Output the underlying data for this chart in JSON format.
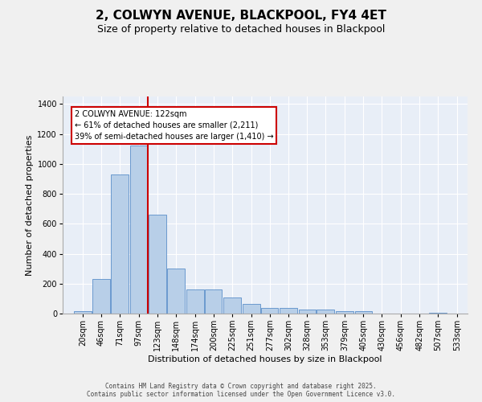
{
  "title": "2, COLWYN AVENUE, BLACKPOOL, FY4 4ET",
  "subtitle": "Size of property relative to detached houses in Blackpool",
  "xlabel": "Distribution of detached houses by size in Blackpool",
  "ylabel": "Number of detached properties",
  "footer": "Contains HM Land Registry data © Crown copyright and database right 2025.\nContains public sector information licensed under the Open Government Licence v3.0.",
  "bins": [
    20,
    46,
    71,
    97,
    123,
    148,
    174,
    200,
    225,
    251,
    277,
    302,
    328,
    353,
    379,
    405,
    430,
    456,
    482,
    507,
    533
  ],
  "bin_labels": [
    "20sqm",
    "46sqm",
    "71sqm",
    "97sqm",
    "123sqm",
    "148sqm",
    "174sqm",
    "200sqm",
    "225sqm",
    "251sqm",
    "277sqm",
    "302sqm",
    "328sqm",
    "353sqm",
    "379sqm",
    "405sqm",
    "430sqm",
    "456sqm",
    "482sqm",
    "507sqm",
    "533sqm"
  ],
  "bar_heights": [
    15,
    230,
    930,
    1120,
    660,
    300,
    160,
    160,
    105,
    65,
    35,
    35,
    25,
    25,
    15,
    15,
    0,
    0,
    0,
    5,
    0
  ],
  "bar_color": "#b8cfe8",
  "bar_edgecolor": "#5b8fc9",
  "bg_color": "#e8eef7",
  "grid_color": "#ffffff",
  "property_size": 122,
  "red_line_color": "#cc0000",
  "annotation_text": "2 COLWYN AVENUE: 122sqm\n← 61% of detached houses are smaller (2,211)\n39% of semi-detached houses are larger (1,410) →",
  "annotation_box_facecolor": "#ffffff",
  "annotation_border_color": "#cc0000",
  "fig_bg_color": "#f0f0f0",
  "ylim": [
    0,
    1450
  ],
  "yticks": [
    0,
    200,
    400,
    600,
    800,
    1000,
    1200,
    1400
  ],
  "title_fontsize": 11,
  "subtitle_fontsize": 9,
  "ylabel_fontsize": 8,
  "xlabel_fontsize": 8,
  "tick_fontsize": 7,
  "footer_fontsize": 5.5,
  "annotation_fontsize": 7
}
